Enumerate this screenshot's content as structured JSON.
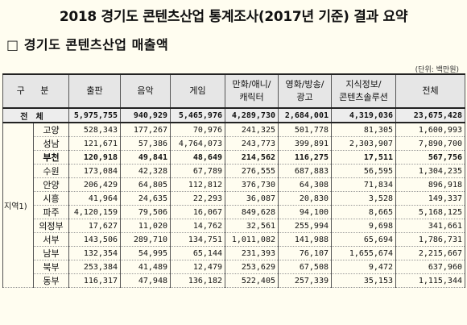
{
  "title": "2018 경기도 콘텐츠산업 통계조사(2017년 기준) 결과 요약",
  "subtitle": "□ 경기도 콘텐츠산업 매출액",
  "unit": "(단위: 백만원)",
  "header": {
    "category": "구  분",
    "columns": [
      "출판",
      "음악",
      "게임",
      "만화/애니/\n캐릭터",
      "영화/방송/\n광고",
      "지식정보/\n콘텐츠솔루션",
      "전체"
    ]
  },
  "total": {
    "label": "전체",
    "values": [
      "5,975,755",
      "940,929",
      "5,465,976",
      "4,289,730",
      "2,684,001",
      "4,319,036",
      "23,675,428"
    ]
  },
  "group_label": "지역1)",
  "rows": [
    {
      "region": "고양",
      "values": [
        "528,343",
        "177,267",
        "70,976",
        "241,325",
        "501,778",
        "81,305",
        "1,600,993"
      ]
    },
    {
      "region": "성남",
      "values": [
        "121,671",
        "57,386",
        "4,764,073",
        "243,773",
        "399,891",
        "2,303,907",
        "7,890,700"
      ]
    },
    {
      "region": "부천",
      "values": [
        "120,918",
        "49,841",
        "48,649",
        "214,562",
        "116,275",
        "17,511",
        "567,756"
      ]
    },
    {
      "region": "수원",
      "values": [
        "173,084",
        "42,328",
        "67,789",
        "276,555",
        "687,883",
        "56,595",
        "1,304,235"
      ]
    },
    {
      "region": "안양",
      "values": [
        "206,429",
        "64,805",
        "112,812",
        "376,730",
        "64,308",
        "71,834",
        "896,918"
      ]
    },
    {
      "region": "시흥",
      "values": [
        "41,964",
        "24,635",
        "22,293",
        "36,087",
        "20,830",
        "3,528",
        "149,337"
      ]
    },
    {
      "region": "파주",
      "values": [
        "4,120,159",
        "79,506",
        "16,067",
        "849,628",
        "94,100",
        "8,665",
        "5,168,125"
      ]
    },
    {
      "region": "의정부",
      "values": [
        "17,627",
        "11,020",
        "14,762",
        "32,561",
        "255,994",
        "9,698",
        "341,661"
      ]
    },
    {
      "region": "서부",
      "values": [
        "143,506",
        "289,710",
        "134,751",
        "1,011,082",
        "141,988",
        "65,694",
        "1,786,731"
      ]
    },
    {
      "region": "남부",
      "values": [
        "132,354",
        "54,995",
        "65,144",
        "231,393",
        "76,107",
        "1,655,674",
        "2,215,667"
      ]
    },
    {
      "region": "북부",
      "values": [
        "253,384",
        "41,489",
        "12,479",
        "253,629",
        "67,508",
        "9,472",
        "637,960"
      ]
    },
    {
      "region": "동부",
      "values": [
        "116,317",
        "47,948",
        "136,182",
        "522,405",
        "257,339",
        "35,153",
        "1,115,344"
      ]
    }
  ]
}
